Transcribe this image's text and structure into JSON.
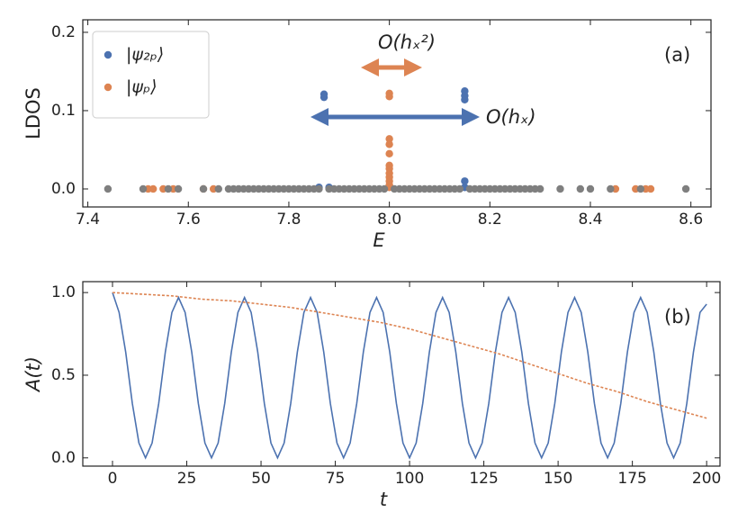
{
  "chart_data": [
    {
      "type": "scatter",
      "xlabel": "E",
      "ylabel": "LDOS",
      "panel_label": "(a)",
      "annotations": [
        {
          "text": "O(hₓ²)"
        },
        {
          "text": "O(hₓ)"
        }
      ],
      "xlim": [
        7.39,
        8.64
      ],
      "ylim": [
        -0.023,
        0.216
      ],
      "xticks": [
        7.4,
        7.6,
        7.8,
        {
          "value": 8,
          "label": "8.0"
        },
        8.2,
        8.4,
        8.6
      ],
      "yticks": [
        {
          "value": 0,
          "label": "0.0"
        },
        0.1,
        0.2
      ],
      "legend": "upper left",
      "series": [
        {
          "name": "|ψ₂ₚ⟩",
          "color": "#4c72b0",
          "x": [
            7.87,
            7.87,
            7.86,
            7.88,
            8.15,
            8.15,
            8.15,
            8.15,
            8.15
          ],
          "values": [
            0.121,
            0.117,
            0.002,
            0.002,
            0.125,
            0.119,
            0.114,
            0.01,
            0.002
          ]
        },
        {
          "name": "|ψₚ⟩",
          "color": "#dd8452",
          "x": [
            7.52,
            7.53,
            7.55,
            7.57,
            7.63,
            7.65,
            8.0,
            8.0,
            8.0,
            8.0,
            8.0,
            8.0,
            8.0,
            8.0,
            8.0,
            8.0,
            8.0,
            8.0,
            8.45,
            8.49,
            8.51,
            8.52
          ],
          "values": [
            0,
            0,
            0,
            0,
            0,
            0,
            0.122,
            0.118,
            0.064,
            0.057,
            0.045,
            0.03,
            0.026,
            0.02,
            0.015,
            0.01,
            0.005,
            0.002,
            0,
            0,
            0,
            0
          ]
        },
        {
          "color": "#7f7f7f",
          "x": [
            7.44,
            7.51,
            7.56,
            7.58,
            7.63,
            7.66,
            7.68,
            7.69,
            7.7,
            7.71,
            7.72,
            7.73,
            7.74,
            7.75,
            7.76,
            7.77,
            7.78,
            7.79,
            7.8,
            7.81,
            7.82,
            7.83,
            7.84,
            7.85,
            7.86,
            7.88,
            7.89,
            7.9,
            7.91,
            7.92,
            7.93,
            7.94,
            7.95,
            7.96,
            7.97,
            7.98,
            7.99,
            8.01,
            8.02,
            8.03,
            8.04,
            8.05,
            8.06,
            8.07,
            8.08,
            8.09,
            8.1,
            8.11,
            8.12,
            8.13,
            8.14,
            8.16,
            8.17,
            8.18,
            8.19,
            8.2,
            8.21,
            8.22,
            8.23,
            8.24,
            8.25,
            8.26,
            8.27,
            8.28,
            8.29,
            8.3,
            8.34,
            8.38,
            8.4,
            8.44,
            8.5,
            8.59
          ],
          "values": [
            0,
            0,
            0,
            0,
            0,
            0,
            0,
            0,
            0,
            0,
            0,
            0,
            0,
            0,
            0,
            0,
            0,
            0,
            0,
            0,
            0,
            0,
            0,
            0,
            0,
            0,
            0,
            0,
            0,
            0,
            0,
            0,
            0,
            0,
            0,
            0,
            0,
            0,
            0,
            0,
            0,
            0,
            0,
            0,
            0,
            0,
            0,
            0,
            0,
            0,
            0,
            0,
            0,
            0,
            0,
            0,
            0,
            0,
            0,
            0,
            0,
            0,
            0,
            0,
            0,
            0,
            0,
            0,
            0,
            0,
            0,
            0
          ]
        }
      ]
    },
    {
      "type": "line",
      "xlabel": "t",
      "ylabel": "A(t)",
      "panel_label": "(b)",
      "xlim": [
        -10,
        204.5
      ],
      "ylim": [
        -0.05,
        1.066
      ],
      "xticks": [
        0,
        25,
        50,
        75,
        100,
        125,
        150,
        175,
        200
      ],
      "yticks": [
        {
          "value": 0,
          "label": "0.0"
        },
        0.5,
        {
          "value": 1,
          "label": "1.0"
        }
      ],
      "series": [
        {
          "color": "#4c72b0",
          "style": "solid",
          "x": [
            0,
            2.22,
            4.44,
            6.67,
            8.89,
            11.11,
            13.33,
            15.56,
            17.78,
            20,
            22.22,
            24.44,
            26.67,
            28.89,
            31.11,
            33.33,
            35.56,
            37.78,
            40,
            42.22,
            44.44,
            46.67,
            48.89,
            51.11,
            53.33,
            55.56,
            57.78,
            60,
            62.22,
            64.44,
            66.67,
            68.89,
            71.11,
            73.33,
            75.56,
            77.78,
            80,
            82.22,
            84.44,
            86.67,
            88.89,
            91.11,
            93.33,
            95.56,
            97.78,
            100,
            102.22,
            104.44,
            106.67,
            108.89,
            111.11,
            113.33,
            115.56,
            117.78,
            120,
            122.22,
            124.44,
            126.67,
            128.89,
            131.11,
            133.33,
            135.56,
            137.78,
            140,
            142.22,
            144.44,
            146.67,
            148.89,
            151.11,
            153.33,
            155.56,
            157.78,
            160,
            162.22,
            164.44,
            166.67,
            168.89,
            171.11,
            173.33,
            175.56,
            177.78,
            180,
            182.22,
            184.44,
            186.67,
            188.89,
            191.11,
            193.33,
            195.56,
            197.78,
            200
          ],
          "values": [
            1.0,
            0.88,
            0.64,
            0.33,
            0.09,
            0,
            0.09,
            0.33,
            0.64,
            0.88,
            0.97,
            0.88,
            0.64,
            0.33,
            0.09,
            0,
            0.09,
            0.33,
            0.64,
            0.88,
            0.97,
            0.88,
            0.64,
            0.33,
            0.09,
            0,
            0.09,
            0.33,
            0.64,
            0.88,
            0.97,
            0.88,
            0.64,
            0.33,
            0.09,
            0,
            0.09,
            0.33,
            0.64,
            0.88,
            0.97,
            0.88,
            0.64,
            0.33,
            0.09,
            0,
            0.09,
            0.33,
            0.64,
            0.88,
            0.97,
            0.88,
            0.64,
            0.33,
            0.09,
            0,
            0.09,
            0.33,
            0.64,
            0.88,
            0.97,
            0.88,
            0.64,
            0.33,
            0.09,
            0,
            0.09,
            0.33,
            0.64,
            0.88,
            0.97,
            0.88,
            0.64,
            0.33,
            0.09,
            0,
            0.09,
            0.33,
            0.64,
            0.88,
            0.97,
            0.88,
            0.64,
            0.33,
            0.09,
            0,
            0.09,
            0.33,
            0.64,
            0.88,
            0.93
          ]
        },
        {
          "color": "#dd8452",
          "style": "dashed",
          "x": [
            0,
            10,
            20,
            30,
            40,
            50,
            60,
            70,
            80,
            90,
            100,
            110,
            120,
            130,
            140,
            150,
            160,
            170,
            180,
            190,
            200
          ],
          "values": [
            1.0,
            0.99,
            0.98,
            0.96,
            0.95,
            0.93,
            0.91,
            0.88,
            0.85,
            0.82,
            0.78,
            0.73,
            0.68,
            0.63,
            0.57,
            0.51,
            0.45,
            0.4,
            0.34,
            0.29,
            0.24
          ]
        }
      ]
    }
  ]
}
